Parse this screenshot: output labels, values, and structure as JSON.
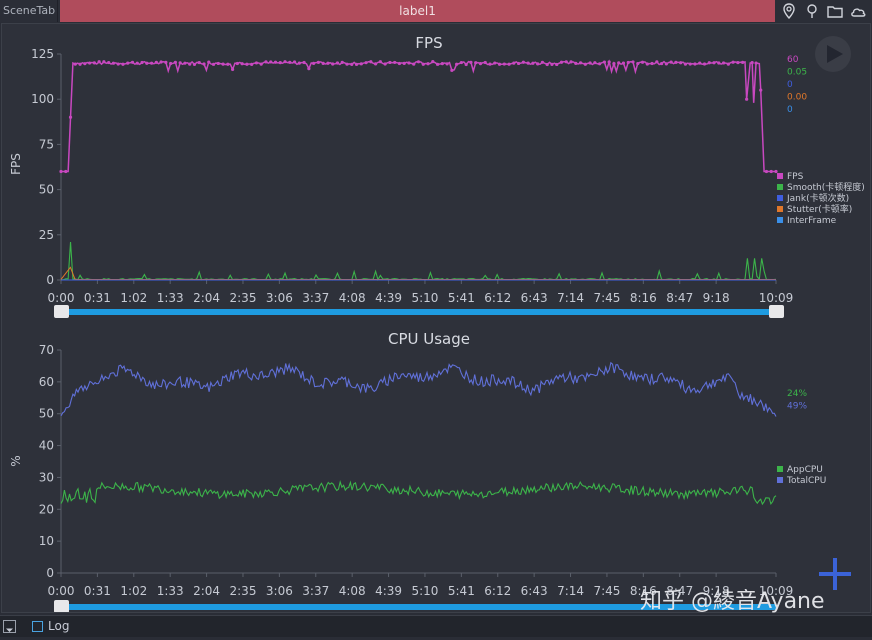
{
  "tabs": {
    "scene": "SceneTab",
    "active": "label1"
  },
  "top_icons": [
    "location-icon",
    "pin-icon",
    "folder-icon",
    "cloud-icon"
  ],
  "bottom": {
    "log_label": "Log"
  },
  "watermark": "知乎 @綾音Ayane",
  "colors": {
    "fps": "#c848c0",
    "smooth": "#3cb44a",
    "jank": "#3f5ee0",
    "stutter": "#e0772a",
    "interframe": "#3a8fe8",
    "app_cpu": "#3cb44a",
    "total_cpu": "#6070d8",
    "slider": "#1e9be0",
    "tab": "#b04c5c"
  },
  "chart_data": [
    {
      "type": "line",
      "title": "FPS",
      "ylabel": "FPS",
      "ylim": [
        0,
        125
      ],
      "yticks": [
        "0",
        "25",
        "50",
        "75",
        "100",
        "125"
      ],
      "xticks": [
        "0:00",
        "0:31",
        "1:02",
        "1:33",
        "2:04",
        "2:35",
        "3:06",
        "3:37",
        "4:08",
        "4:39",
        "5:10",
        "5:41",
        "6:12",
        "6:43",
        "7:14",
        "7:45",
        "8:16",
        "8:47",
        "9:18",
        "10:09"
      ],
      "current_values": [
        {
          "name": "FPS",
          "value": "60",
          "color": "#c848c0"
        },
        {
          "name": "Smooth(卡顿程度)",
          "value": "0.05",
          "color": "#3cb44a"
        },
        {
          "name": "Jank(卡顿次数)",
          "value": "0",
          "color": "#3f5ee0"
        },
        {
          "name": "Stutter(卡顿率)",
          "value": "0.00",
          "color": "#e0772a"
        },
        {
          "name": "InterFrame",
          "value": "0",
          "color": "#3a8fe8"
        }
      ],
      "legend": [
        "FPS",
        "Smooth(卡顿程度)",
        "Jank(卡顿次数)",
        "Stutter(卡顿率)",
        "InterFrame"
      ],
      "duration_s": 609,
      "series": [
        {
          "name": "FPS",
          "description_values": {
            "start": 60,
            "plateau": 120,
            "end": 60
          }
        },
        {
          "name": "Smooth(卡顿程度)",
          "description_values": {
            "baseline": 0,
            "peak": 21
          }
        }
      ]
    },
    {
      "type": "line",
      "title": "CPU Usage",
      "ylabel": "%",
      "ylim": [
        0,
        70
      ],
      "yticks": [
        "0",
        "10",
        "20",
        "30",
        "40",
        "50",
        "60",
        "70"
      ],
      "xticks": [
        "0:00",
        "0:31",
        "1:02",
        "1:33",
        "2:04",
        "2:35",
        "3:06",
        "3:37",
        "4:08",
        "4:39",
        "5:10",
        "5:41",
        "6:12",
        "6:43",
        "7:14",
        "7:45",
        "8:16",
        "8:47",
        "9:18",
        "10:09"
      ],
      "current_values": [
        {
          "name": "AppCPU",
          "value": "24%",
          "color": "#3cb44a"
        },
        {
          "name": "TotalCPU",
          "value": "49%",
          "color": "#6070d8"
        }
      ],
      "legend": [
        "AppCPU",
        "TotalCPU"
      ],
      "series": [
        {
          "name": "AppCPU",
          "typical": 26,
          "range": [
            21,
            30
          ]
        },
        {
          "name": "TotalCPU",
          "typical": 61,
          "range": [
            47,
            66
          ]
        }
      ]
    }
  ]
}
